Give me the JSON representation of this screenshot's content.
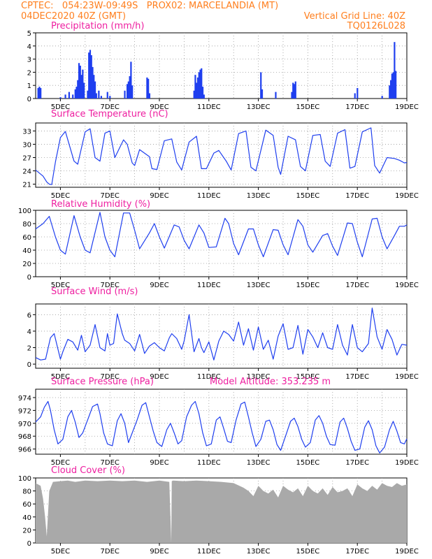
{
  "header": {
    "line1_left": "CPTEC:   054:23W-09:49S   PROX02: MARCELANDIA (MT)",
    "line2_left": "04DEC2020 40Z (GMT)",
    "line2_right": "Vertical Grid Line: 40Z",
    "line3_right": "TQ0126L028"
  },
  "colors": {
    "header": "#ff7f1e",
    "title": "#ee1fa0",
    "line": "#1f3fef",
    "cloud": "#a9a9a9",
    "grid": "#9a9a9a"
  },
  "x_axis": {
    "tick_labels": [
      "5DEC",
      "7DEC",
      "9DEC",
      "11DEC",
      "13DEC",
      "15DEC",
      "17DEC",
      "19DEC"
    ],
    "tick_days": [
      5,
      7,
      9,
      11,
      13,
      15,
      17,
      19
    ],
    "xlim_days": [
      4.0,
      19.0
    ],
    "grid_every_days": 1
  },
  "chart_data": [
    {
      "id": "precip",
      "type": "bar",
      "title": "Precipitation (mm/h)",
      "ylim": [
        0,
        5
      ],
      "yticks": [
        0,
        1,
        2,
        3,
        4,
        5
      ],
      "x_days": [
        4.1,
        4.15,
        4.2,
        5.0,
        5.2,
        5.35,
        5.5,
        5.6,
        5.65,
        5.7,
        5.75,
        5.8,
        5.85,
        5.9,
        5.95,
        6.1,
        6.15,
        6.2,
        6.25,
        6.3,
        6.35,
        6.4,
        6.45,
        6.55,
        6.65,
        6.9,
        7.0,
        7.6,
        7.7,
        7.75,
        7.8,
        7.85,
        7.9,
        8.5,
        8.55,
        8.6,
        10.4,
        10.45,
        10.5,
        10.55,
        10.6,
        10.65,
        10.7,
        10.75,
        10.8,
        13.1,
        13.15,
        13.7,
        14.35,
        14.4,
        14.45,
        14.5,
        16.9,
        17.0,
        18.0,
        18.3,
        18.35,
        18.4,
        18.45,
        18.5,
        18.55
      ],
      "values": [
        0.8,
        0.9,
        0.8,
        0.1,
        0.3,
        0.5,
        0.3,
        0.7,
        0.9,
        1.4,
        2.7,
        2.5,
        1.8,
        2.2,
        1.2,
        0.6,
        3.5,
        3.7,
        3.3,
        2.4,
        1.8,
        1.3,
        0.4,
        0.6,
        0.2,
        0.5,
        0.2,
        0.6,
        1.1,
        1.3,
        1.7,
        2.8,
        1.0,
        1.6,
        1.5,
        0.4,
        0.6,
        1.8,
        1.2,
        1.6,
        2.0,
        2.2,
        2.3,
        0.9,
        0.3,
        2.0,
        0.7,
        0.5,
        0.5,
        1.2,
        1.1,
        1.3,
        0.4,
        0.8,
        0.2,
        1.0,
        1.4,
        1.9,
        2.0,
        4.3,
        2.1
      ]
    },
    {
      "id": "temp",
      "type": "line",
      "title": "Surface Temperature (nC)",
      "ylim": [
        20.3,
        34.8
      ],
      "yticks": [
        21,
        24,
        27,
        30,
        33
      ],
      "x_days": [
        4.0,
        4.3,
        4.45,
        4.55,
        4.65,
        4.8,
        5.0,
        5.2,
        5.55,
        5.7,
        6.0,
        6.2,
        6.4,
        6.6,
        6.8,
        7.0,
        7.2,
        7.55,
        7.7,
        7.9,
        8.0,
        8.2,
        8.6,
        8.7,
        8.9,
        9.2,
        9.5,
        9.7,
        9.9,
        10.2,
        10.5,
        10.7,
        10.9,
        11.2,
        11.4,
        11.7,
        11.9,
        12.2,
        12.5,
        12.7,
        12.9,
        13.3,
        13.6,
        13.8,
        13.9,
        14.2,
        14.5,
        14.7,
        14.9,
        15.2,
        15.5,
        15.7,
        15.9,
        16.2,
        16.5,
        16.7,
        16.9,
        17.2,
        17.55,
        17.7,
        17.9,
        18.2,
        18.5,
        18.7,
        18.9,
        19.0
      ],
      "values": [
        24.2,
        22.8,
        21.5,
        21.0,
        20.9,
        26.0,
        31.5,
        32.9,
        26.2,
        25.5,
        32.8,
        33.5,
        27.0,
        26.2,
        32.5,
        33.0,
        27.0,
        31.0,
        30.0,
        25.8,
        25.2,
        28.8,
        27.2,
        24.5,
        24.3,
        30.8,
        31.2,
        26.0,
        24.2,
        30.5,
        31.8,
        24.5,
        24.5,
        28.0,
        28.6,
        26.2,
        24.2,
        32.4,
        33.0,
        24.8,
        24.0,
        33.2,
        32.0,
        24.8,
        23.2,
        31.8,
        31.0,
        25.0,
        24.0,
        32.0,
        32.2,
        26.2,
        25.0,
        32.5,
        33.3,
        24.6,
        25.0,
        32.8,
        33.7,
        25.2,
        23.5,
        27.0,
        26.8,
        26.4,
        25.8,
        25.9
      ]
    },
    {
      "id": "rh",
      "type": "line",
      "title": "Relative Humidity (%)",
      "ylim": [
        0,
        100
      ],
      "yticks": [
        0,
        20,
        40,
        60,
        80,
        100
      ],
      "x_days": [
        4.0,
        4.3,
        4.55,
        4.8,
        5.0,
        5.2,
        5.55,
        5.8,
        6.0,
        6.2,
        6.6,
        6.8,
        7.0,
        7.2,
        7.55,
        7.8,
        8.0,
        8.2,
        8.6,
        8.8,
        9.0,
        9.2,
        9.6,
        9.8,
        10.0,
        10.2,
        10.6,
        10.8,
        11.0,
        11.3,
        11.65,
        11.8,
        12.0,
        12.2,
        12.6,
        12.8,
        13.0,
        13.2,
        13.6,
        13.8,
        14.0,
        14.2,
        14.6,
        14.8,
        15.0,
        15.2,
        15.6,
        15.8,
        16.0,
        16.2,
        16.6,
        16.8,
        17.0,
        17.2,
        17.6,
        17.8,
        18.0,
        18.2,
        18.5,
        18.7,
        18.9,
        19.0
      ],
      "values": [
        72,
        80,
        91,
        60,
        40,
        34,
        92,
        60,
        40,
        36,
        97,
        60,
        40,
        30,
        96,
        96,
        70,
        42,
        66,
        80,
        60,
        43,
        78,
        75,
        55,
        42,
        78,
        66,
        44,
        45,
        88,
        80,
        50,
        33,
        72,
        72,
        48,
        30,
        71,
        70,
        48,
        33,
        86,
        76,
        48,
        37,
        62,
        65,
        46,
        32,
        81,
        80,
        52,
        30,
        87,
        88,
        60,
        42,
        62,
        76,
        76,
        78
      ]
    },
    {
      "id": "wind",
      "type": "line",
      "title": "Surface Wind (m/s)",
      "ylim": [
        -0.5,
        7.3
      ],
      "yticks": [
        0,
        2,
        4,
        6
      ],
      "x_days": [
        4.0,
        4.2,
        4.4,
        4.6,
        4.75,
        5.0,
        5.1,
        5.3,
        5.5,
        5.7,
        5.85,
        6.0,
        6.2,
        6.4,
        6.6,
        6.8,
        6.9,
        7.0,
        7.15,
        7.3,
        7.5,
        7.6,
        7.8,
        8.0,
        8.2,
        8.4,
        8.6,
        8.8,
        9.0,
        9.2,
        9.4,
        9.5,
        9.7,
        9.9,
        10.0,
        10.2,
        10.4,
        10.6,
        10.7,
        10.8,
        11.0,
        11.2,
        11.4,
        11.6,
        11.8,
        12.0,
        12.2,
        12.4,
        12.6,
        12.8,
        13.0,
        13.2,
        13.4,
        13.6,
        13.8,
        14.0,
        14.2,
        14.4,
        14.6,
        14.8,
        15.0,
        15.2,
        15.4,
        15.6,
        15.8,
        16.0,
        16.2,
        16.4,
        16.6,
        16.8,
        17.0,
        17.2,
        17.45,
        17.6,
        17.8,
        18.0,
        18.2,
        18.4,
        18.6,
        18.8,
        19.0
      ],
      "values": [
        0.8,
        0.5,
        0.6,
        3.2,
        3.7,
        0.6,
        1.5,
        3.0,
        2.7,
        1.7,
        3.5,
        1.5,
        2.3,
        4.8,
        2.0,
        1.6,
        3.7,
        2.3,
        2.5,
        6.1,
        3.7,
        2.9,
        2.5,
        1.6,
        3.6,
        1.3,
        2.2,
        2.6,
        2.0,
        1.6,
        3.2,
        3.7,
        3.1,
        1.8,
        2.8,
        6.0,
        1.5,
        3.1,
        2.0,
        1.4,
        2.7,
        0.5,
        2.8,
        4.0,
        3.6,
        2.8,
        5.1,
        2.3,
        4.3,
        1.7,
        4.5,
        1.8,
        2.9,
        0.6,
        3.4,
        4.9,
        1.8,
        2.0,
        4.7,
        1.2,
        4.2,
        3.3,
        2.0,
        3.8,
        2.0,
        1.8,
        4.8,
        2.3,
        1.1,
        4.8,
        2.0,
        1.5,
        2.5,
        6.8,
        3.3,
        1.8,
        4.2,
        3.0,
        1.1,
        2.4,
        2.3
      ]
    },
    {
      "id": "press",
      "type": "line",
      "title": "Surface Pressure (hPa)",
      "annotation": "Model Altitude:  353.235 m",
      "ylim": [
        965.2,
        975.3
      ],
      "yticks": [
        966,
        968,
        970,
        972,
        974
      ],
      "x_days": [
        4.0,
        4.2,
        4.35,
        4.5,
        4.6,
        4.75,
        4.9,
        5.1,
        5.3,
        5.45,
        5.6,
        5.75,
        5.9,
        6.1,
        6.3,
        6.5,
        6.6,
        6.75,
        6.9,
        7.1,
        7.3,
        7.45,
        7.6,
        7.75,
        7.9,
        8.1,
        8.3,
        8.45,
        8.6,
        8.75,
        8.9,
        9.1,
        9.3,
        9.45,
        9.6,
        9.75,
        9.9,
        10.1,
        10.3,
        10.45,
        10.6,
        10.75,
        10.9,
        11.1,
        11.3,
        11.45,
        11.6,
        11.75,
        11.9,
        12.1,
        12.3,
        12.45,
        12.6,
        12.75,
        12.9,
        13.1,
        13.3,
        13.45,
        13.6,
        13.75,
        13.9,
        14.1,
        14.3,
        14.45,
        14.6,
        14.75,
        14.9,
        15.1,
        15.3,
        15.45,
        15.6,
        15.75,
        15.9,
        16.1,
        16.3,
        16.45,
        16.6,
        16.75,
        16.9,
        17.1,
        17.3,
        17.45,
        17.6,
        17.75,
        17.9,
        18.1,
        18.3,
        18.45,
        18.6,
        18.75,
        18.9,
        19.0
      ],
      "values": [
        970.2,
        971.0,
        972.5,
        973.4,
        972.0,
        969.0,
        966.8,
        967.5,
        971.0,
        972.0,
        970.2,
        967.8,
        968.5,
        970.5,
        972.6,
        973.0,
        971.5,
        968.5,
        966.8,
        966.5,
        970.4,
        971.5,
        970.0,
        967.0,
        968.5,
        970.5,
        972.8,
        973.2,
        971.0,
        968.8,
        967.0,
        966.4,
        969.0,
        970.0,
        968.5,
        966.8,
        967.3,
        971.0,
        972.8,
        973.4,
        971.5,
        968.5,
        966.5,
        966.8,
        970.5,
        971.0,
        969.2,
        967.2,
        967.0,
        970.5,
        973.0,
        973.3,
        971.0,
        968.5,
        966.4,
        967.5,
        970.3,
        970.5,
        969.0,
        966.7,
        965.8,
        968.0,
        970.3,
        970.8,
        969.5,
        967.5,
        966.3,
        967.0,
        970.5,
        971.2,
        970.0,
        968.0,
        966.7,
        966.6,
        970.2,
        970.8,
        969.2,
        967.2,
        965.8,
        966.0,
        969.4,
        970.4,
        969.0,
        966.5,
        965.4,
        966.3,
        969.0,
        970.3,
        968.8,
        967.0,
        966.8,
        967.6
      ]
    },
    {
      "id": "cloud",
      "type": "area",
      "title": "Cloud Cover (%)",
      "ylim": [
        0,
        100
      ],
      "yticks": [
        0,
        20,
        40,
        60,
        80,
        100
      ],
      "x_days": [
        4.0,
        4.2,
        4.3,
        4.38,
        4.45,
        4.5,
        4.55,
        4.7,
        5.0,
        5.3,
        5.6,
        6.0,
        6.5,
        7.0,
        7.5,
        8.0,
        8.5,
        9.0,
        9.4,
        9.48,
        9.5,
        9.55,
        10.0,
        10.5,
        11.0,
        11.5,
        12.0,
        12.4,
        12.6,
        12.8,
        13.0,
        13.2,
        13.4,
        13.6,
        13.8,
        14.0,
        14.2,
        14.4,
        14.6,
        14.8,
        15.0,
        15.2,
        15.4,
        15.6,
        15.8,
        16.0,
        16.2,
        16.4,
        16.6,
        16.8,
        17.0,
        17.2,
        17.4,
        17.6,
        17.8,
        18.0,
        18.2,
        18.4,
        18.6,
        18.8,
        19.0
      ],
      "values": [
        92,
        88,
        68,
        40,
        10,
        45,
        80,
        94,
        95,
        96,
        94,
        96,
        95,
        96,
        95,
        96,
        94,
        96,
        94,
        0,
        95,
        96,
        95,
        96,
        95,
        94,
        92,
        85,
        80,
        72,
        88,
        80,
        76,
        82,
        70,
        88,
        82,
        78,
        84,
        72,
        88,
        80,
        76,
        84,
        74,
        86,
        78,
        80,
        84,
        72,
        90,
        84,
        80,
        88,
        82,
        92,
        88,
        86,
        92,
        88,
        90
      ]
    }
  ]
}
